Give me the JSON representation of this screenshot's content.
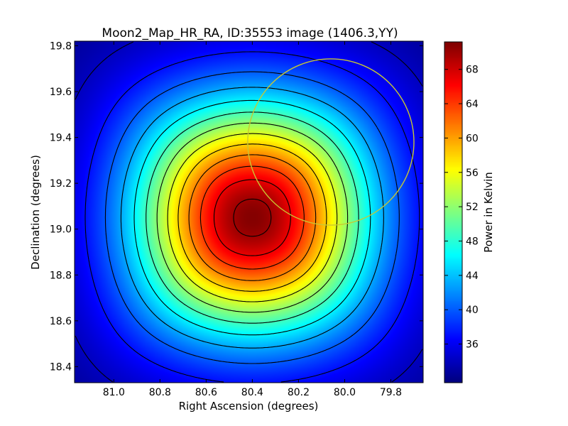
{
  "chart_data": {
    "type": "heatmap",
    "title": "Moon2_Map_HR_RA, ID:35553 image (1406.3,YY)",
    "xlabel": "Right Ascension (degrees)",
    "ylabel": "Declination (degrees)",
    "xlim": [
      81.17,
      79.66
    ],
    "ylim": [
      18.33,
      19.82
    ],
    "x_ticks": [
      81.0,
      80.8,
      80.6,
      80.4,
      80.2,
      80.0,
      79.8
    ],
    "x_tick_labels": [
      "81.0",
      "80.8",
      "80.6",
      "80.4",
      "80.2",
      "80.0",
      "79.8"
    ],
    "y_ticks": [
      18.4,
      18.6,
      18.8,
      19.0,
      19.2,
      19.4,
      19.6,
      19.8
    ],
    "y_tick_labels": [
      "18.4",
      "18.6",
      "18.8",
      "19.0",
      "19.2",
      "19.4",
      "19.6",
      "19.8"
    ],
    "colormap": "jet",
    "colorbar": {
      "label": "Power in Kelvin",
      "min": 31.5,
      "max": 71.2,
      "ticks": [
        36,
        40,
        44,
        48,
        52,
        56,
        60,
        64,
        68
      ],
      "tick_labels": [
        "36",
        "40",
        "44",
        "48",
        "52",
        "56",
        "60",
        "64",
        "68"
      ]
    },
    "peak": {
      "ra": 80.4,
      "dec": 19.05,
      "value": 71
    },
    "contour_color": "#000000",
    "circle": {
      "center_ra": 80.06,
      "center_dec": 19.38,
      "radius_deg": 0.36,
      "color": "#c8c832"
    },
    "grid": false
  }
}
